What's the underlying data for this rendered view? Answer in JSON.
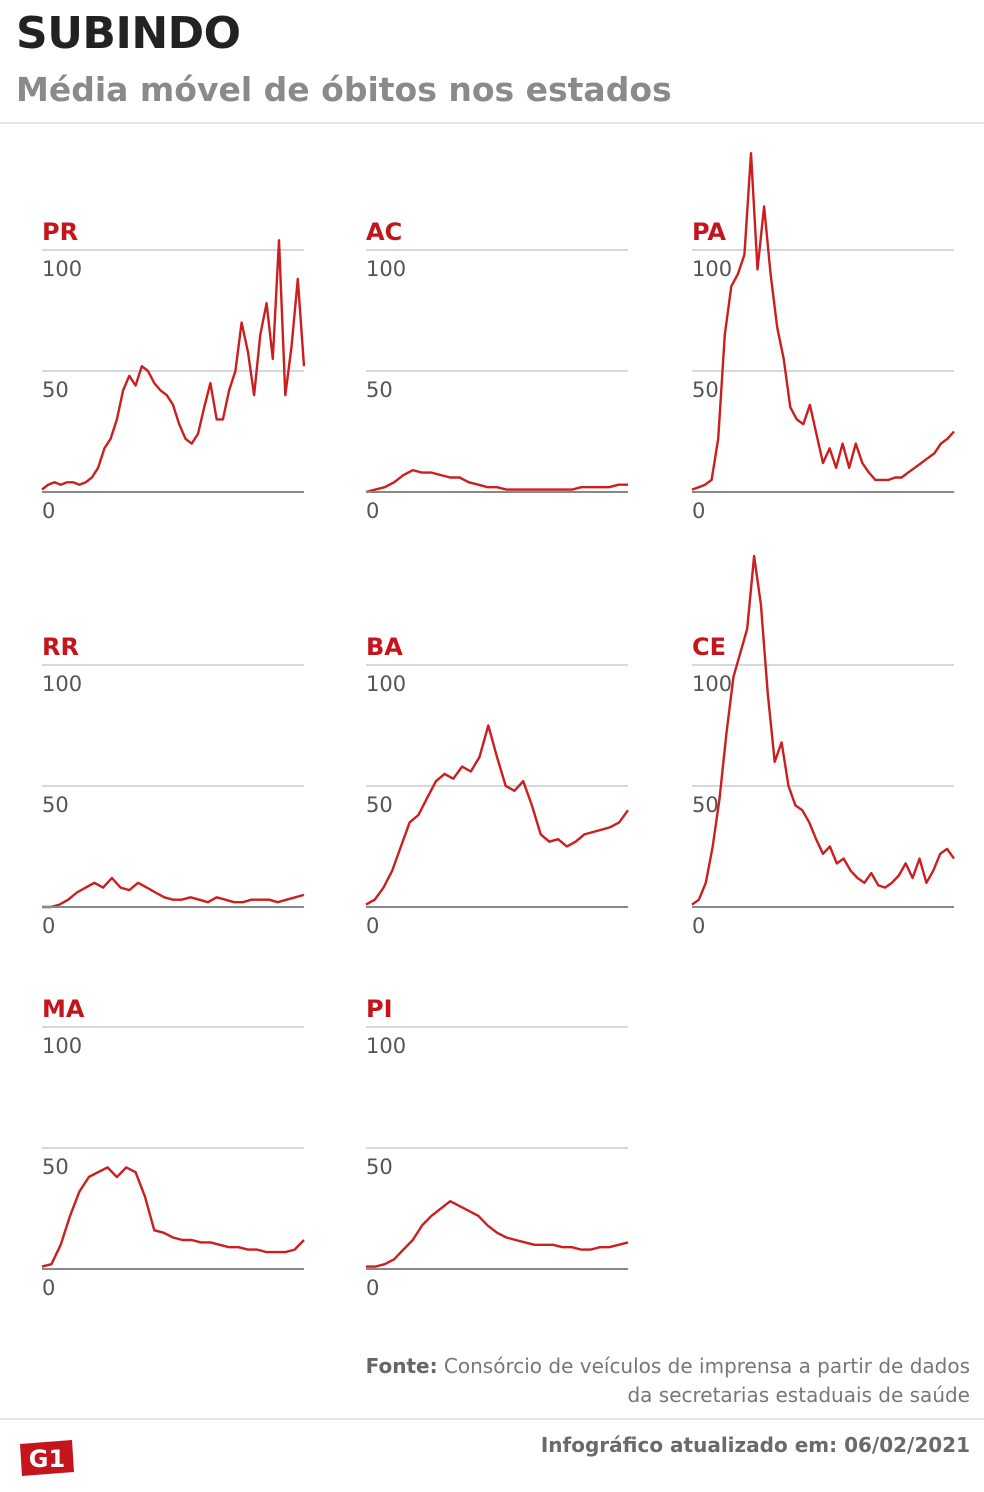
{
  "header": {
    "title": "SUBINDO",
    "subtitle": "Média móvel de óbitos nos estados"
  },
  "footer": {
    "source_label": "Fonte:",
    "source_text": "Consórcio de veículos de imprensa a partir de dados da secretarias estaduais de saúde",
    "updated": "Infográfico atualizado em: 06/02/2021",
    "logo": "G1"
  },
  "colors": {
    "line": "#cc1e1e",
    "label": "#c4151c",
    "grid": "#cccccc",
    "axis": "#888888"
  },
  "chart_data": [
    {
      "type": "line",
      "title": "PR",
      "ylim": [
        0,
        100
      ],
      "yticks": [
        0,
        50,
        100
      ],
      "grid": true,
      "values": [
        1,
        3,
        4,
        3,
        4,
        4,
        3,
        4,
        6,
        10,
        18,
        22,
        30,
        42,
        48,
        44,
        52,
        50,
        45,
        42,
        40,
        36,
        28,
        22,
        20,
        24,
        35,
        45,
        30,
        30,
        42,
        50,
        70,
        58,
        40,
        65,
        78,
        55,
        104,
        40,
        60,
        88,
        52
      ]
    },
    {
      "type": "line",
      "title": "AC",
      "ylim": [
        0,
        100
      ],
      "yticks": [
        0,
        50,
        100
      ],
      "grid": true,
      "values": [
        0,
        1,
        2,
        4,
        7,
        9,
        8,
        8,
        7,
        6,
        6,
        4,
        3,
        2,
        2,
        1,
        1,
        1,
        1,
        1,
        1,
        1,
        1,
        2,
        2,
        2,
        2,
        3,
        3
      ]
    },
    {
      "type": "line",
      "title": "PA",
      "ylim": [
        0,
        100
      ],
      "yticks": [
        0,
        50,
        100
      ],
      "grid": true,
      "values": [
        1,
        2,
        3,
        5,
        22,
        65,
        85,
        90,
        98,
        140,
        92,
        118,
        90,
        68,
        55,
        35,
        30,
        28,
        36,
        24,
        12,
        18,
        10,
        20,
        10,
        20,
        12,
        8,
        5,
        5,
        5,
        6,
        6,
        8,
        10,
        12,
        14,
        16,
        20,
        22,
        25
      ]
    },
    {
      "type": "line",
      "title": "RR",
      "ylim": [
        0,
        100
      ],
      "yticks": [
        0,
        50,
        100
      ],
      "grid": true,
      "values": [
        0,
        0,
        1,
        3,
        6,
        8,
        10,
        8,
        12,
        8,
        7,
        10,
        8,
        6,
        4,
        3,
        3,
        4,
        3,
        2,
        4,
        3,
        2,
        2,
        3,
        3,
        3,
        2,
        3,
        4,
        5
      ]
    },
    {
      "type": "line",
      "title": "BA",
      "ylim": [
        0,
        100
      ],
      "yticks": [
        0,
        50,
        100
      ],
      "grid": true,
      "values": [
        1,
        3,
        8,
        15,
        25,
        35,
        38,
        45,
        52,
        55,
        53,
        58,
        56,
        62,
        75,
        62,
        50,
        48,
        52,
        42,
        30,
        27,
        28,
        25,
        27,
        30,
        31,
        32,
        33,
        35,
        40
      ]
    },
    {
      "type": "line",
      "title": "CE",
      "ylim": [
        0,
        100
      ],
      "yticks": [
        0,
        50,
        100
      ],
      "grid": true,
      "values": [
        1,
        3,
        10,
        25,
        45,
        72,
        95,
        105,
        115,
        145,
        125,
        88,
        60,
        68,
        50,
        42,
        40,
        35,
        28,
        22,
        25,
        18,
        20,
        15,
        12,
        10,
        14,
        9,
        8,
        10,
        13,
        18,
        12,
        20,
        10,
        15,
        22,
        24,
        20
      ]
    },
    {
      "type": "line",
      "title": "MA",
      "ylim": [
        0,
        100
      ],
      "yticks": [
        0,
        50,
        100
      ],
      "grid": true,
      "values": [
        1,
        2,
        10,
        22,
        32,
        38,
        40,
        42,
        38,
        42,
        40,
        30,
        16,
        15,
        13,
        12,
        12,
        11,
        11,
        10,
        9,
        9,
        8,
        8,
        7,
        7,
        7,
        8,
        12
      ]
    },
    {
      "type": "line",
      "title": "PI",
      "ylim": [
        0,
        100
      ],
      "yticks": [
        0,
        50,
        100
      ],
      "grid": true,
      "values": [
        1,
        1,
        2,
        4,
        8,
        12,
        18,
        22,
        25,
        28,
        26,
        24,
        22,
        18,
        15,
        13,
        12,
        11,
        10,
        10,
        10,
        9,
        9,
        8,
        8,
        9,
        9,
        10,
        11
      ]
    }
  ]
}
